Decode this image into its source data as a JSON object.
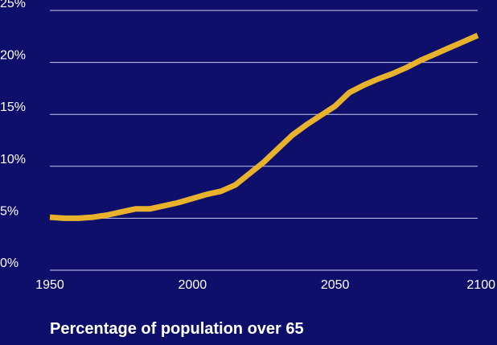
{
  "colors": {
    "background": "#0e0f6b",
    "gridline": "#c9cbe8",
    "line": "#e8b22c",
    "text": "#ffffff"
  },
  "chart_data": {
    "type": "line",
    "title": "Percentage of population over 65",
    "xlabel": "",
    "ylabel": "",
    "xlim": [
      1950,
      2100
    ],
    "ylim": [
      0,
      25
    ],
    "grid": true,
    "x_ticks": [
      1950,
      2000,
      2050,
      2100
    ],
    "x_tick_labels": [
      "1950",
      "2000",
      "2050",
      "2100"
    ],
    "y_ticks": [
      0,
      5,
      10,
      15,
      20,
      25
    ],
    "y_tick_labels": [
      "0%",
      "5%",
      "10%",
      "15%",
      "20%",
      "25%"
    ],
    "series": [
      {
        "x": [
          1950,
          1955,
          1960,
          1965,
          1970,
          1975,
          1980,
          1985,
          1990,
          1995,
          2000,
          2005,
          2010,
          2015,
          2020,
          2025,
          2030,
          2035,
          2040,
          2045,
          2050,
          2055,
          2060,
          2065,
          2070,
          2075,
          2080,
          2085,
          2090,
          2095,
          2100
        ],
        "y": [
          5.1,
          5.0,
          5.0,
          5.1,
          5.3,
          5.6,
          5.9,
          5.9,
          6.2,
          6.5,
          6.9,
          7.3,
          7.6,
          8.2,
          9.3,
          10.4,
          11.7,
          13.0,
          14.0,
          14.9,
          15.8,
          17.1,
          17.8,
          18.4,
          18.9,
          19.5,
          20.2,
          20.8,
          21.4,
          22.0,
          22.6
        ]
      }
    ]
  }
}
